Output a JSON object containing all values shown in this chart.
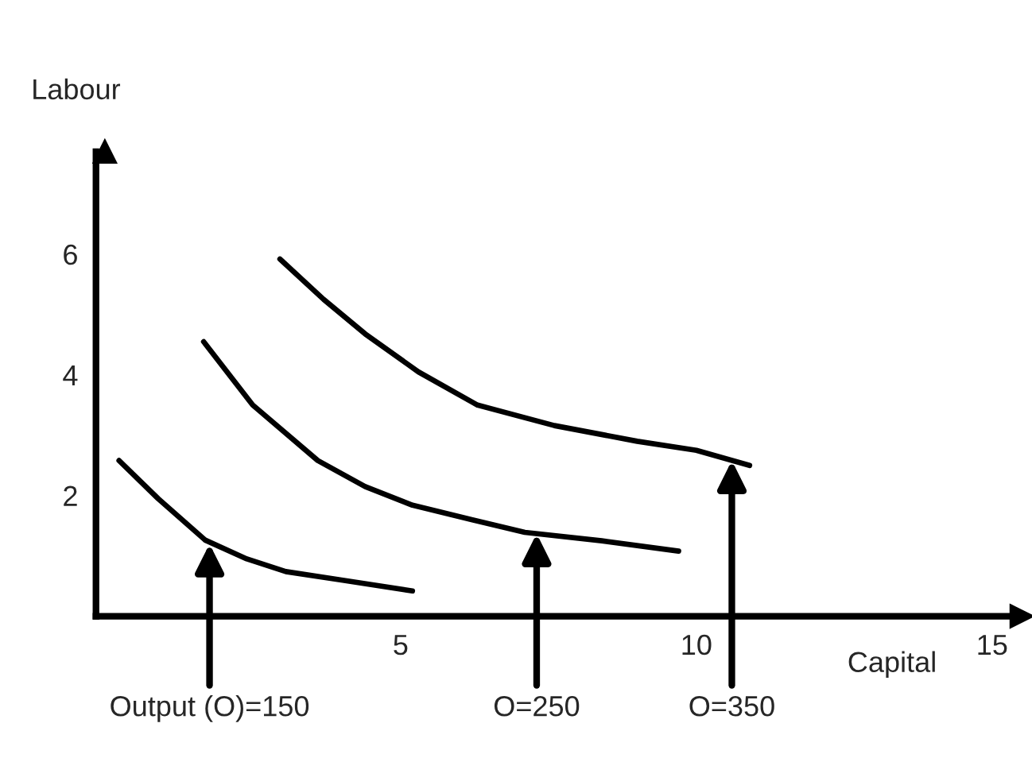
{
  "chart_data": {
    "type": "line",
    "xlabel": "Capital",
    "ylabel": "Labour",
    "xlim": [
      -0.15,
      15.5
    ],
    "ylim": [
      0,
      7.7
    ],
    "xticks": [
      5,
      10,
      15
    ],
    "yticks": [
      2,
      4,
      6
    ],
    "grid": false,
    "legend": false,
    "marker": "none",
    "line_style": "solid",
    "series": [
      {
        "color": "#000000",
        "x": [
          0.24,
          0.9,
          1.7,
          2.4,
          3.06,
          4.0,
          5.2
        ],
        "values": [
          2.58,
          1.95,
          1.26,
          0.95,
          0.74,
          0.6,
          0.42
        ]
      },
      {
        "color": "#000000",
        "x": [
          1.67,
          2.5,
          3.6,
          4.4,
          5.2,
          6.2,
          7.1,
          8.4,
          9.7
        ],
        "values": [
          4.55,
          3.5,
          2.58,
          2.15,
          1.84,
          1.6,
          1.39,
          1.25,
          1.08
        ]
      },
      {
        "color": "#000000",
        "x": [
          2.96,
          3.7,
          4.4,
          5.3,
          6.3,
          7.6,
          9.0,
          10.0,
          10.9
        ],
        "values": [
          5.92,
          5.25,
          4.68,
          4.05,
          3.5,
          3.16,
          2.9,
          2.75,
          2.5
        ]
      }
    ],
    "annotations": [
      {
        "text": "Output (O)=150",
        "x": 1.77,
        "y": 1.2
      },
      {
        "text": "O=250",
        "x": 7.3,
        "y": 1.37
      },
      {
        "text": "O=350",
        "x": 10.6,
        "y": 2.58
      }
    ]
  }
}
